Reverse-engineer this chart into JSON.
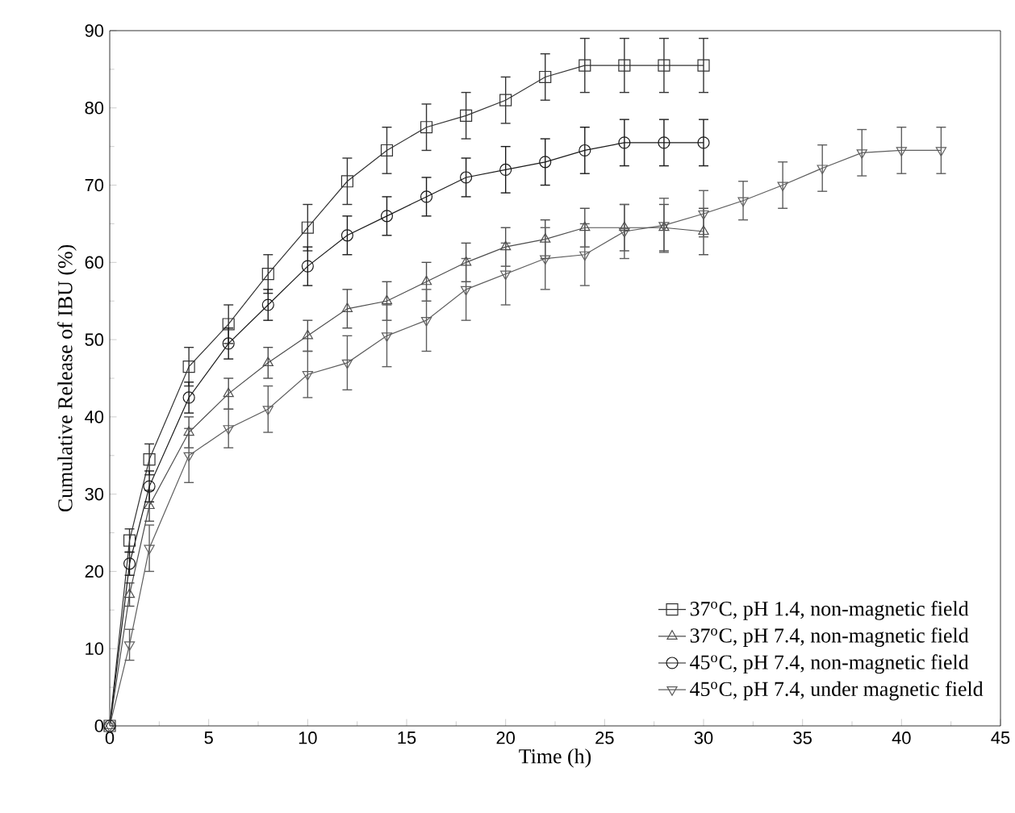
{
  "chart_data": {
    "type": "line",
    "xlabel": "Time (h)",
    "ylabel": "Cumulative Release of IBU (%)",
    "xlim": [
      0,
      45
    ],
    "ylim": [
      0,
      90
    ],
    "xticks": [
      0,
      5,
      10,
      15,
      20,
      25,
      30,
      35,
      40,
      45
    ],
    "yticks": [
      0,
      10,
      20,
      30,
      40,
      50,
      60,
      70,
      80,
      90
    ],
    "grid": false,
    "legend": "bottom right",
    "line_style": "solid",
    "series": [
      {
        "name": "37$^{o}$C, pH 1.4, non-magnetic field",
        "color": "#333333",
        "marker": "square",
        "x": [
          0,
          1,
          2,
          4,
          6,
          8,
          10,
          12,
          14,
          16,
          18,
          20,
          22,
          24,
          26,
          28,
          30
        ],
        "values": [
          0,
          24,
          34.5,
          46.5,
          52,
          58.5,
          64.5,
          70.5,
          74.5,
          77.5,
          79,
          81,
          84,
          85.5,
          85.5,
          85.5,
          85.5
        ],
        "errors": [
          0,
          1.5,
          2,
          2.5,
          2.5,
          2.5,
          3,
          3,
          3,
          3,
          3,
          3,
          3,
          3.5,
          3.5,
          3.5,
          3.5
        ]
      },
      {
        "name": "37$^{o}$C, pH 7.4, non-magnetic field",
        "color": "#4d4d4d",
        "marker": "triangle",
        "x": [
          0,
          1,
          2,
          4,
          6,
          8,
          10,
          12,
          14,
          16,
          18,
          20,
          22,
          24,
          26,
          28,
          30
        ],
        "values": [
          0,
          17,
          28.5,
          38,
          43,
          47,
          50.5,
          54,
          55,
          57.5,
          60,
          62,
          63,
          64.5,
          64.5,
          64.5,
          64
        ],
        "errors": [
          0,
          1.5,
          2,
          2,
          2,
          2,
          2,
          2.5,
          2.5,
          2.5,
          2.5,
          2.5,
          2.5,
          2.5,
          3,
          3,
          3
        ]
      },
      {
        "name": "45$^{o}$C, pH 7.4, non-magnetic field",
        "color": "#1a1a1a",
        "marker": "circle",
        "x": [
          0,
          1,
          2,
          4,
          6,
          8,
          10,
          12,
          14,
          16,
          18,
          20,
          22,
          24,
          26,
          28,
          30
        ],
        "values": [
          0,
          21,
          31,
          42.5,
          49.5,
          54.5,
          59.5,
          63.5,
          66,
          68.5,
          71,
          72,
          73,
          74.5,
          75.5,
          75.5,
          75.5
        ],
        "errors": [
          0,
          1.5,
          2,
          2,
          2,
          2,
          2.5,
          2.5,
          2.5,
          2.5,
          2.5,
          3,
          3,
          3,
          3,
          3,
          3
        ]
      },
      {
        "name": "45$^{o}$C, pH 7.4, under magnetic field",
        "color": "#5e5e5e",
        "marker": "triangle",
        "x": [
          0,
          1,
          2,
          4,
          6,
          8,
          10,
          12,
          14,
          16,
          18,
          20,
          22,
          24,
          26,
          28,
          30,
          32,
          34,
          36,
          38,
          40,
          42
        ],
        "values": [
          0,
          10.5,
          23,
          35,
          38.5,
          41,
          45.5,
          47,
          50.5,
          52.5,
          56.5,
          58.5,
          60.5,
          61,
          64,
          64.8,
          66.3,
          68,
          70,
          72.2,
          74.2,
          74.5,
          74.5
        ],
        "errors": [
          0,
          2,
          3,
          3.5,
          2.5,
          3,
          3,
          3.5,
          4,
          4,
          4,
          4,
          4,
          4,
          3.5,
          3.5,
          3,
          2.5,
          3,
          3,
          3,
          3,
          3
        ]
      }
    ]
  }
}
